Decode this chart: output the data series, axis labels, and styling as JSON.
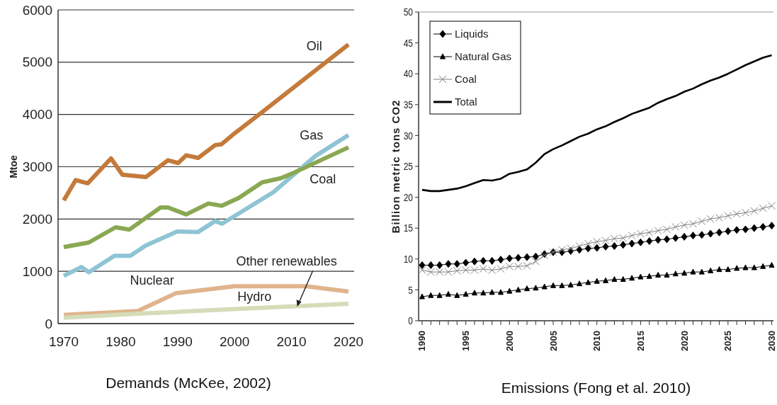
{
  "chart_data": [
    {
      "type": "line",
      "title": "Demands (McKee, 2002)",
      "ylabel": "Mtoe",
      "xlim": [
        1969,
        2021
      ],
      "xticks": [
        1970,
        1980,
        1990,
        2000,
        2010,
        2020
      ],
      "ylim": [
        0,
        6000
      ],
      "yticks": [
        0,
        1000,
        2000,
        3000,
        4000,
        5000,
        6000
      ],
      "grid": "y",
      "legend": false,
      "marker": "none",
      "line_style": "solid",
      "annotations": [
        {
          "text": "Other renewables",
          "x": 2011,
          "y": 320
        }
      ],
      "series": [
        {
          "name": "Oil",
          "color": "#c47a3a",
          "x": [
            1970,
            1972.1,
            1974.2,
            1978.3,
            1980.3,
            1984.4,
            1988.3,
            1990.1,
            1991.5,
            1993.6,
            1996.6,
            1997.7,
            2000,
            2004.8,
            2020
          ],
          "values": [
            2356,
            2745,
            2682,
            3160,
            2848,
            2803,
            3125,
            3071,
            3219,
            3169,
            3415,
            3429,
            3639,
            4041,
            5337
          ]
        },
        {
          "name": "Gas",
          "color": "#8ec4d4",
          "x": [
            1970,
            1973.1,
            1974.4,
            1978.9,
            1981.7,
            1984.4,
            1989.9,
            1993.6,
            1996.6,
            1997.8,
            2006.8,
            2014.2,
            2020
          ],
          "values": [
            912,
            1082,
            983,
            1296,
            1296,
            1493,
            1761,
            1752,
            1962,
            1909,
            2512,
            3205,
            3607
          ]
        },
        {
          "name": "Coal",
          "color": "#8aa852",
          "x": [
            1970,
            1974.4,
            1979.1,
            1981.5,
            1987,
            1988.3,
            1991.5,
            1995.4,
            1997.7,
            2000.7,
            2004.8,
            2008.1,
            2010.1,
            2020
          ],
          "values": [
            1462,
            1551,
            1842,
            1797,
            2222,
            2222,
            2088,
            2298,
            2253,
            2400,
            2700,
            2780,
            2870,
            3371
          ]
        },
        {
          "name": "Nuclear",
          "color": "#e0b48c",
          "x": [
            1970,
            1983,
            1989.7,
            2000,
            2012.6,
            2020
          ],
          "values": [
            165,
            241,
            581,
            715,
            715,
            612
          ]
        },
        {
          "name": "Hydro",
          "color": "#d4dcb8",
          "x": [
            1970,
            1983,
            2000,
            2020
          ],
          "values": [
            112,
            188,
            277,
            380
          ]
        }
      ]
    },
    {
      "type": "line",
      "title": "Emissions (Fong et al. 2010)",
      "ylabel": "Billion metric tons CO2",
      "xlim": [
        1989.6,
        2030.2
      ],
      "xticks": [
        1990,
        {
          "value": 1991,
          "label": null
        },
        {
          "value": 1992,
          "label": null
        },
        {
          "value": 1993,
          "label": null
        },
        {
          "value": 1994,
          "label": null
        },
        1995,
        {
          "value": 1996,
          "label": null
        },
        {
          "value": 1997,
          "label": null
        },
        {
          "value": 1998,
          "label": null
        },
        {
          "value": 1999,
          "label": null
        },
        2000,
        {
          "value": 2001,
          "label": null
        },
        {
          "value": 2002,
          "label": null
        },
        {
          "value": 2003,
          "label": null
        },
        {
          "value": 2004,
          "label": null
        },
        2005,
        {
          "value": 2006,
          "label": null
        },
        {
          "value": 2007,
          "label": null
        },
        {
          "value": 2008,
          "label": null
        },
        {
          "value": 2009,
          "label": null
        },
        2010,
        {
          "value": 2011,
          "label": null
        },
        {
          "value": 2012,
          "label": null
        },
        {
          "value": 2013,
          "label": null
        },
        {
          "value": 2014,
          "label": null
        },
        2015,
        {
          "value": 2016,
          "label": null
        },
        {
          "value": 2017,
          "label": null
        },
        {
          "value": 2018,
          "label": null
        },
        {
          "value": 2019,
          "label": null
        },
        2020,
        {
          "value": 2021,
          "label": null
        },
        {
          "value": 2022,
          "label": null
        },
        {
          "value": 2023,
          "label": null
        },
        {
          "value": 2024,
          "label": null
        },
        2025,
        {
          "value": 2026,
          "label": null
        },
        {
          "value": 2027,
          "label": null
        },
        {
          "value": 2028,
          "label": null
        },
        {
          "value": 2029,
          "label": null
        },
        2030
      ],
      "ylim": [
        0,
        50
      ],
      "yticks": [
        0,
        5,
        10,
        15,
        20,
        25,
        30,
        35,
        40,
        45,
        50
      ],
      "grid": false,
      "legend": "top left",
      "line_style": "solid",
      "x": [
        1990,
        1991,
        1992,
        1993,
        1994,
        1995,
        1996,
        1997,
        1998,
        1999,
        2000,
        2001,
        2002,
        2003,
        2004,
        2005,
        2006,
        2007,
        2008,
        2009,
        2010,
        2011,
        2012,
        2013,
        2014,
        2015,
        2016,
        2017,
        2018,
        2019,
        2020,
        2021,
        2022,
        2023,
        2024,
        2025,
        2026,
        2027,
        2028,
        2029,
        2030
      ],
      "series": [
        {
          "name": "Liquids",
          "color": "#000000",
          "marker": "diamond",
          "values": [
            9.0,
            9.0,
            9.0,
            9.2,
            9.2,
            9.4,
            9.6,
            9.7,
            9.7,
            9.9,
            10.1,
            10.2,
            10.3,
            10.4,
            10.8,
            11.1,
            11.1,
            11.3,
            11.5,
            11.7,
            11.8,
            12.0,
            12.1,
            12.3,
            12.5,
            12.7,
            12.9,
            13.1,
            13.2,
            13.4,
            13.6,
            13.8,
            13.9,
            14.1,
            14.3,
            14.5,
            14.7,
            14.8,
            15.0,
            15.2,
            15.4
          ]
        },
        {
          "name": "Natural Gas",
          "color": "#000000",
          "marker": "triangle",
          "values": [
            3.9,
            4.1,
            4.1,
            4.3,
            4.1,
            4.3,
            4.5,
            4.5,
            4.6,
            4.6,
            4.8,
            5.0,
            5.2,
            5.3,
            5.5,
            5.7,
            5.7,
            5.8,
            6.0,
            6.2,
            6.4,
            6.5,
            6.7,
            6.7,
            6.9,
            7.1,
            7.2,
            7.4,
            7.4,
            7.6,
            7.7,
            7.9,
            7.9,
            8.1,
            8.3,
            8.3,
            8.5,
            8.6,
            8.6,
            8.8,
            9.0
          ]
        },
        {
          "name": "Coal",
          "color": "#808080",
          "marker": "cross",
          "values": [
            8.2,
            7.9,
            7.9,
            7.9,
            8.1,
            8.2,
            8.2,
            8.4,
            8.2,
            8.4,
            8.8,
            8.8,
            8.9,
            9.6,
            10.6,
            11.1,
            11.5,
            11.7,
            12.1,
            12.5,
            12.8,
            13.0,
            13.3,
            13.4,
            13.8,
            14.1,
            14.3,
            14.6,
            14.8,
            15.2,
            15.5,
            15.7,
            16.1,
            16.5,
            16.7,
            17.0,
            17.3,
            17.5,
            17.8,
            18.2,
            18.6
          ]
        },
        {
          "name": "Total",
          "color": "#000000",
          "marker": "none",
          "values": [
            21.2,
            21.0,
            21.0,
            21.2,
            21.4,
            21.8,
            22.3,
            22.8,
            22.7,
            23.0,
            23.8,
            24.1,
            24.5,
            25.6,
            27.0,
            27.8,
            28.4,
            29.1,
            29.8,
            30.3,
            31.0,
            31.5,
            32.2,
            32.8,
            33.5,
            34.0,
            34.5,
            35.3,
            35.9,
            36.4,
            37.1,
            37.6,
            38.3,
            38.9,
            39.4,
            40.0,
            40.7,
            41.4,
            42.0,
            42.6,
            43.0
          ]
        }
      ]
    }
  ]
}
